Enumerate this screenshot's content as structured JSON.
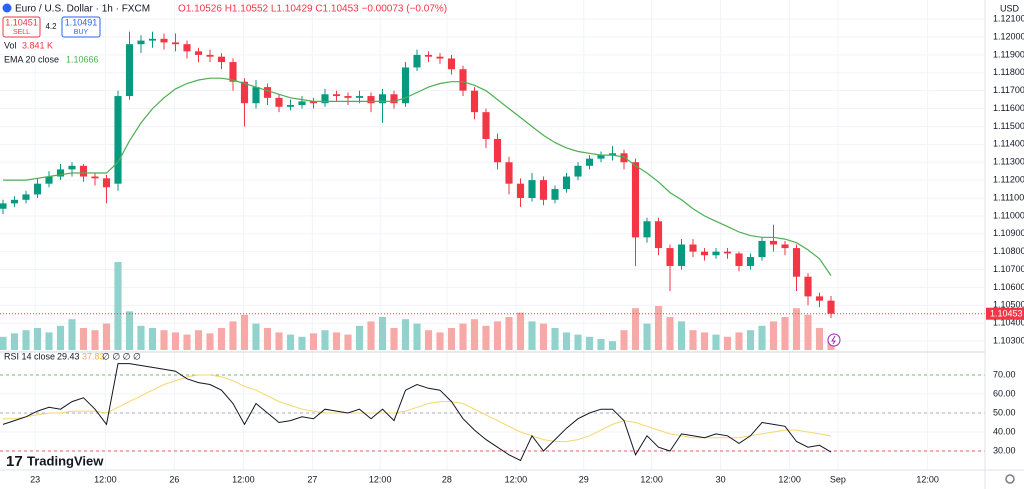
{
  "chart_data": {
    "type": "candlestick",
    "title": "Euro / U.S. Dollar · 1h · FXCM",
    "ohlc_legend": "O1.10526 H1.10552 L1.10429 C1.10453 −0.00073 (−0.07%)",
    "sell_price": 1.10451,
    "sell_label": "SELL",
    "spread": 4.2,
    "buy_price": 1.10491,
    "buy_label": "BUY",
    "currency": "USD",
    "volume_name": "Vol",
    "volume_value_label": "3.841 K",
    "watermark": "TradingView",
    "up_color": "#089981",
    "down_color": "#f23645",
    "volume_up_color": "#92d2cc",
    "volume_down_color": "#f7a9a7",
    "xlim": [
      -0.26,
      85.39
    ],
    "xticks": [
      {
        "value": 2.8,
        "label": "23"
      },
      {
        "value": 8.9,
        "label": "12:00"
      },
      {
        "value": 14.9,
        "label": "26"
      },
      {
        "value": 20.9,
        "label": "12:00"
      },
      {
        "value": 26.9,
        "label": "27"
      },
      {
        "value": 32.8,
        "label": "12:00"
      },
      {
        "value": 38.6,
        "label": "28"
      },
      {
        "value": 44.6,
        "label": "12:00"
      },
      {
        "value": 50.5,
        "label": "29"
      },
      {
        "value": 56.4,
        "label": "12:00"
      },
      {
        "value": 62.4,
        "label": "30"
      },
      {
        "value": 68.4,
        "label": "12:00"
      },
      {
        "value": 72.6,
        "label": "Sep"
      },
      {
        "value": 80.4,
        "label": "12:00"
      }
    ],
    "ylim": [
      1.10239,
      1.12207
    ],
    "yticks": [
      {
        "value": 1.121,
        "label": "1.12100"
      },
      {
        "value": 1.12,
        "label": "1.12000"
      },
      {
        "value": 1.119,
        "label": "1.11900"
      },
      {
        "value": 1.118,
        "label": "1.11800"
      },
      {
        "value": 1.117,
        "label": "1.11700"
      },
      {
        "value": 1.116,
        "label": "1.11600"
      },
      {
        "value": 1.115,
        "label": "1.11500"
      },
      {
        "value": 1.114,
        "label": "1.11400"
      },
      {
        "value": 1.113,
        "label": "1.11300"
      },
      {
        "value": 1.112,
        "label": "1.11200"
      },
      {
        "value": 1.111,
        "label": "1.11100"
      },
      {
        "value": 1.11,
        "label": "1.11000"
      },
      {
        "value": 1.109,
        "label": "1.10900"
      },
      {
        "value": 1.108,
        "label": "1.10800"
      },
      {
        "value": 1.107,
        "label": "1.10700"
      },
      {
        "value": 1.106,
        "label": "1.10600"
      },
      {
        "value": 1.105,
        "label": "1.10500"
      },
      {
        "value": 1.104,
        "label": "1.10400"
      },
      {
        "value": 1.103,
        "label": "1.10300"
      }
    ],
    "grid": true,
    "open": [
      1.1104,
      1.1107,
      1.1109,
      1.1112,
      1.1118,
      1.1122,
      1.1126,
      1.1128,
      1.1122,
      1.1121,
      1.1118,
      1.1167,
      1.1196,
      1.1198,
      1.1199,
      1.1197,
      1.1196,
      1.1192,
      1.119,
      1.1189,
      1.1186,
      1.1175,
      1.1163,
      1.1172,
      1.1166,
      1.1161,
      1.1162,
      1.1164,
      1.1163,
      1.1168,
      1.1167,
      1.1166,
      1.1167,
      1.1163,
      1.1168,
      1.1163,
      1.1183,
      1.119,
      1.1189,
      1.1188,
      1.1182,
      1.117,
      1.1158,
      1.1143,
      1.113,
      1.1118,
      1.111,
      1.112,
      1.1109,
      1.1115,
      1.1122,
      1.1128,
      1.1132,
      1.1134,
      1.1135,
      1.113,
      1.1088,
      1.1097,
      1.1082,
      1.1072,
      1.1084,
      1.108,
      1.1078,
      1.108,
      1.1079,
      1.1072,
      1.1077,
      1.1086,
      1.1084,
      1.1082,
      1.1066,
      1.1055,
      1.10526
    ],
    "high": [
      1.1109,
      1.1111,
      1.1114,
      1.1121,
      1.1125,
      1.1129,
      1.113,
      1.1129,
      1.1124,
      1.1123,
      1.117,
      1.1203,
      1.1201,
      1.1203,
      1.1202,
      1.1202,
      1.1198,
      1.1194,
      1.1193,
      1.1191,
      1.1188,
      1.1177,
      1.1176,
      1.1174,
      1.1168,
      1.1165,
      1.1167,
      1.1166,
      1.1171,
      1.117,
      1.1169,
      1.117,
      1.1169,
      1.1171,
      1.117,
      1.1186,
      1.1193,
      1.1192,
      1.1191,
      1.119,
      1.1184,
      1.1172,
      1.116,
      1.1146,
      1.1133,
      1.1121,
      1.1124,
      1.1122,
      1.1117,
      1.1124,
      1.113,
      1.1134,
      1.1136,
      1.1139,
      1.1137,
      1.1132,
      1.1099,
      1.1099,
      1.1084,
      1.1087,
      1.1087,
      1.1082,
      1.1082,
      1.1082,
      1.108,
      1.1079,
      1.1088,
      1.1095,
      1.1086,
      1.1084,
      1.1068,
      1.1057,
      1.10552
    ],
    "low": [
      1.1101,
      1.1105,
      1.1107,
      1.111,
      1.1116,
      1.112,
      1.1122,
      1.1119,
      1.1117,
      1.1107,
      1.1114,
      1.1165,
      1.1191,
      1.1194,
      1.1193,
      1.1192,
      1.1188,
      1.1186,
      1.1186,
      1.1182,
      1.117,
      1.115,
      1.116,
      1.1162,
      1.1158,
      1.1159,
      1.116,
      1.116,
      1.1161,
      1.1164,
      1.1162,
      1.1163,
      1.1158,
      1.1152,
      1.116,
      1.1161,
      1.1181,
      1.1186,
      1.1185,
      1.1179,
      1.1167,
      1.1154,
      1.1138,
      1.1126,
      1.1112,
      1.1105,
      1.1108,
      1.1106,
      1.1107,
      1.1113,
      1.112,
      1.1126,
      1.113,
      1.1131,
      1.1126,
      1.1072,
      1.1085,
      1.1078,
      1.1058,
      1.107,
      1.1077,
      1.1075,
      1.1076,
      1.1076,
      1.1069,
      1.107,
      1.1075,
      1.108,
      1.1078,
      1.1058,
      1.105,
      1.1049,
      1.10429
    ],
    "close": [
      1.1107,
      1.1109,
      1.1112,
      1.1118,
      1.1122,
      1.1126,
      1.1128,
      1.1122,
      1.1121,
      1.1116,
      1.1167,
      1.1196,
      1.1198,
      1.1199,
      1.1197,
      1.1196,
      1.1192,
      1.119,
      1.1189,
      1.1186,
      1.1175,
      1.1163,
      1.1172,
      1.1166,
      1.1161,
      1.1162,
      1.1164,
      1.1163,
      1.1168,
      1.1167,
      1.1166,
      1.1167,
      1.1163,
      1.1168,
      1.1163,
      1.1183,
      1.119,
      1.1189,
      1.1188,
      1.1182,
      1.117,
      1.1158,
      1.1143,
      1.113,
      1.1118,
      1.111,
      1.112,
      1.1109,
      1.1115,
      1.1122,
      1.1128,
      1.1132,
      1.1134,
      1.1135,
      1.113,
      1.1088,
      1.1097,
      1.1082,
      1.1072,
      1.1084,
      1.108,
      1.1078,
      1.108,
      1.1079,
      1.1072,
      1.1077,
      1.1086,
      1.1084,
      1.1082,
      1.1066,
      1.1055,
      1.10526,
      1.10453
    ],
    "volume": [
      4.2,
      5.3,
      6.3,
      7,
      5.6,
      7.7,
      9.8,
      7,
      6.3,
      8.4,
      28,
      12.3,
      7.7,
      7,
      6.3,
      5.6,
      4.9,
      6.3,
      5.3,
      7,
      9.1,
      11.2,
      8.4,
      7,
      5.6,
      4.9,
      4.2,
      5.3,
      6.3,
      5.6,
      4.9,
      7.7,
      9.1,
      10.5,
      7,
      9.8,
      8.4,
      6.3,
      5.6,
      7,
      8.4,
      9.8,
      7.7,
      9.1,
      10.5,
      11.9,
      9.1,
      8.4,
      7,
      5.6,
      4.9,
      4.2,
      3.5,
      2.8,
      6.3,
      13.3,
      8.4,
      14,
      10.5,
      9.1,
      6.3,
      5.6,
      4.9,
      4.2,
      5.6,
      6.3,
      7.7,
      9.1,
      10.5,
      13.3,
      11.2,
      7,
      3.841
    ],
    "ema": {
      "label": "EMA 20 close",
      "value": 1.10666,
      "color": "#4caf50",
      "values": [
        1.112,
        1.112,
        1.112,
        1.1121,
        1.1122,
        1.1123,
        1.1124,
        1.1124,
        1.1124,
        1.1124,
        1.113,
        1.1142,
        1.1152,
        1.116,
        1.1166,
        1.1171,
        1.1174,
        1.1176,
        1.1177,
        1.1177,
        1.1176,
        1.1174,
        1.1172,
        1.117,
        1.1168,
        1.1166,
        1.1165,
        1.1164,
        1.1164,
        1.1164,
        1.1164,
        1.1164,
        1.1164,
        1.1164,
        1.1164,
        1.1166,
        1.1169,
        1.1172,
        1.1174,
        1.1175,
        1.1175,
        1.1173,
        1.117,
        1.1165,
        1.116,
        1.1155,
        1.115,
        1.1145,
        1.1141,
        1.1138,
        1.1136,
        1.1135,
        1.1134,
        1.1134,
        1.1133,
        1.1128,
        1.1124,
        1.1119,
        1.1113,
        1.1109,
        1.1104,
        1.11,
        1.1097,
        1.1094,
        1.1091,
        1.1089,
        1.1088,
        1.1088,
        1.1087,
        1.1085,
        1.1081,
        1.1076,
        1.10666
      ]
    },
    "rsi": {
      "label": "RSI 14 close",
      "value": 29.43,
      "ma_value": 37.83,
      "extra": "∅ ∅ ∅ ∅",
      "color": "#131722",
      "ma_color": "#f5d76e",
      "ylim": [
        20,
        82.1
      ],
      "yticks": [
        {
          "value": 70,
          "label": "70.00"
        },
        {
          "value": 60,
          "label": "60.00"
        },
        {
          "value": 50,
          "label": "50.00"
        },
        {
          "value": 40,
          "label": "40.00"
        },
        {
          "value": 30,
          "label": "30.00"
        }
      ],
      "levels": [
        {
          "value": 70,
          "color": "#4caf50"
        },
        {
          "value": 50,
          "color": "#9e9e9e"
        },
        {
          "value": 30,
          "color": "#f23645"
        }
      ],
      "values": [
        44,
        46,
        48,
        51,
        53,
        52,
        56,
        58,
        52,
        44,
        76,
        76,
        75,
        74,
        73,
        72,
        68,
        66,
        65,
        62,
        55,
        44,
        55,
        50,
        45,
        46,
        48,
        47,
        52,
        51,
        50,
        52,
        47,
        52,
        46,
        62,
        65,
        63,
        62,
        56,
        47,
        41,
        36,
        32,
        28,
        25,
        38,
        30,
        36,
        42,
        47,
        50,
        52,
        52,
        46,
        28,
        38,
        32,
        30,
        39,
        38,
        37,
        39,
        38,
        34,
        38,
        45,
        44,
        43,
        35,
        32,
        33,
        29.43
      ],
      "ma_values": [
        47,
        47,
        48,
        49,
        50,
        50,
        51,
        51,
        51,
        50,
        53,
        56,
        59,
        62,
        65,
        67,
        69,
        70,
        70,
        69,
        67,
        64,
        62,
        59,
        56,
        54,
        52,
        51,
        50,
        50,
        50,
        50,
        50,
        50,
        50,
        51,
        53,
        55,
        56,
        56,
        55,
        52,
        49,
        46,
        43,
        40,
        38,
        36,
        35,
        35,
        36,
        38,
        41,
        44,
        46,
        45,
        43,
        41,
        39,
        38,
        37,
        37,
        37,
        37,
        37,
        38,
        39,
        40,
        41,
        41,
        40,
        39,
        37.83
      ]
    }
  }
}
